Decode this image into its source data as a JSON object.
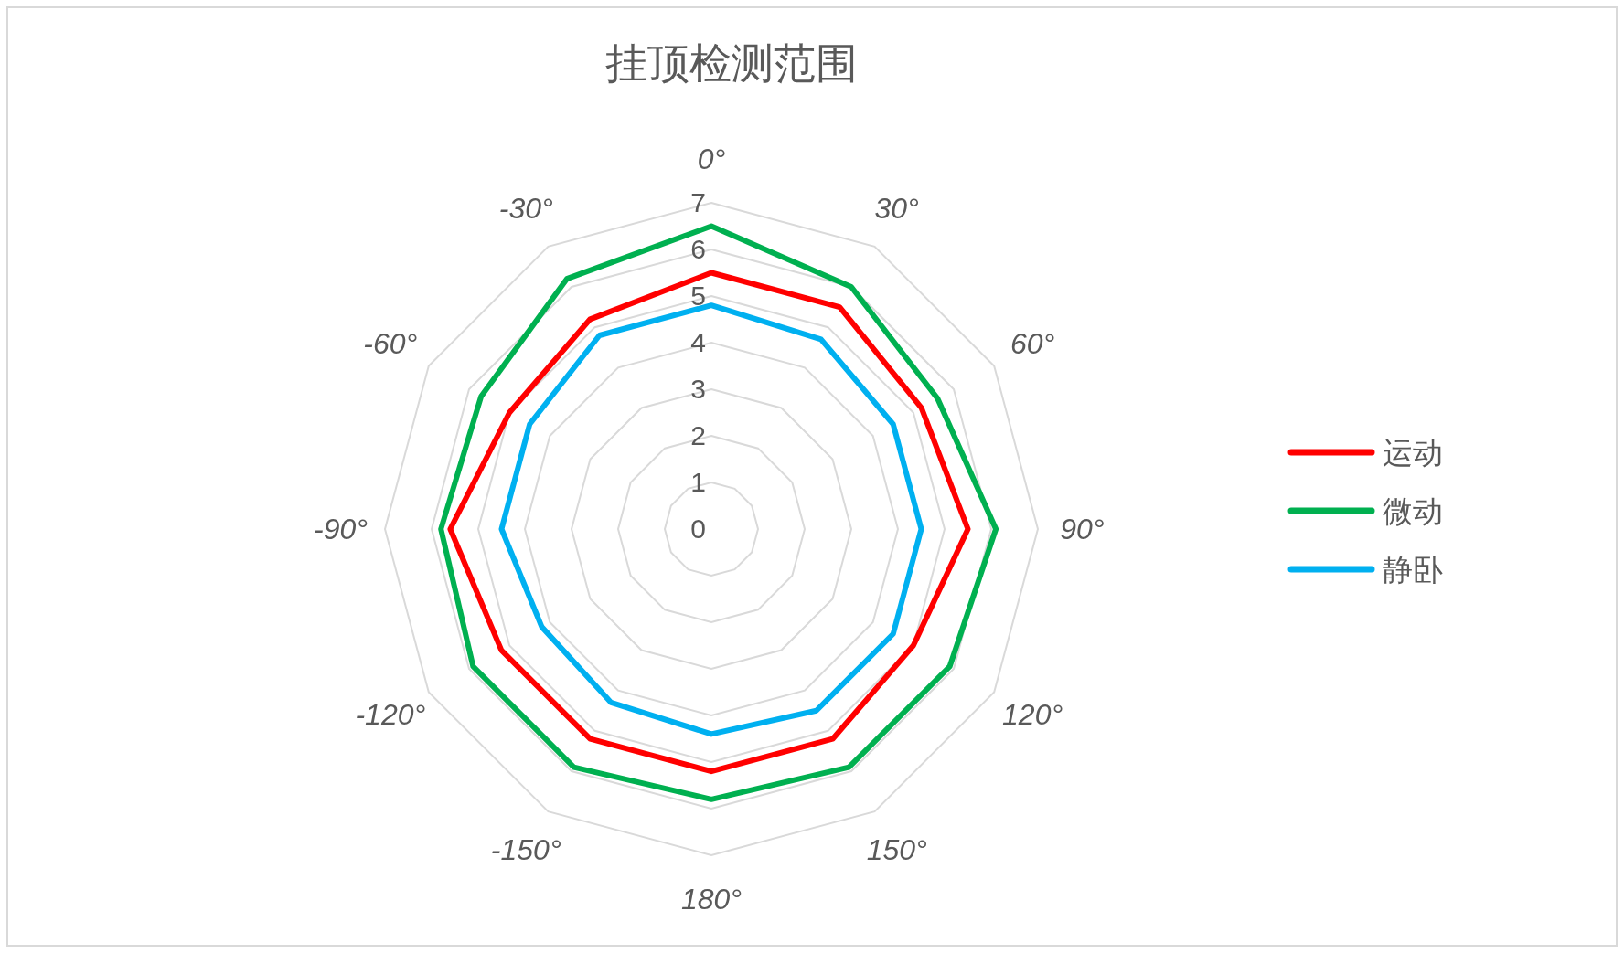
{
  "chart_data": {
    "type": "radar",
    "title": "挂顶检测范围",
    "categories": [
      "0°",
      "30°",
      "60°",
      "90°",
      "120°",
      "150°",
      "180°",
      "-150°",
      "-120°",
      "-90°",
      "-60°",
      "-30°"
    ],
    "series": [
      {
        "name": "运动",
        "color": "#ff0000",
        "values": [
          5.5,
          5.5,
          5.2,
          5.5,
          5.0,
          5.2,
          5.2,
          5.2,
          5.2,
          5.6,
          5.0,
          5.2
        ]
      },
      {
        "name": "微动",
        "color": "#00b050",
        "values": [
          6.5,
          6.0,
          5.6,
          6.1,
          5.9,
          5.9,
          5.8,
          5.9,
          5.9,
          5.8,
          5.7,
          6.2
        ]
      },
      {
        "name": "静卧",
        "color": "#00b0f0",
        "values": [
          4.8,
          4.7,
          4.5,
          4.5,
          4.5,
          4.5,
          4.4,
          4.3,
          4.2,
          4.5,
          4.5,
          4.8
        ]
      }
    ],
    "ylim": [
      0,
      7
    ],
    "yticks": [
      0,
      1,
      2,
      3,
      4,
      5,
      6,
      7
    ],
    "grid": true,
    "legend": "right"
  }
}
